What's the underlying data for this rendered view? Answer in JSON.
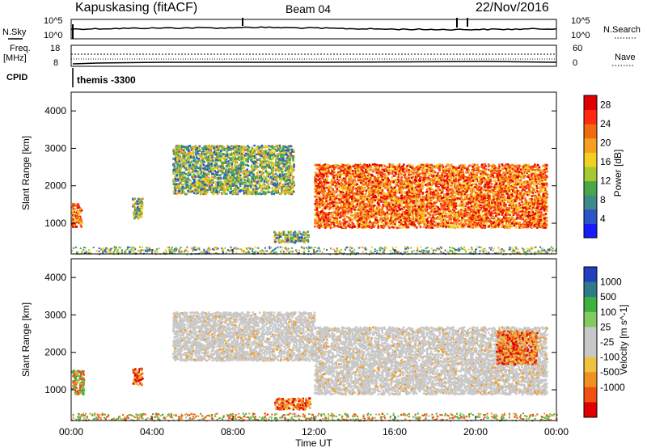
{
  "header": {
    "station": "Kapuskasing (fitACF)",
    "beam": "Beam 04",
    "date": "22/Nov/2016"
  },
  "top_panels": {
    "nsky_label": "N.Sky",
    "nsky_ticks": [
      "10^5",
      "10^0"
    ],
    "nsearch_label": "N.Search",
    "freq_label_line1": "Freq.",
    "freq_label_line2": "[MHz]",
    "freq_ticks": [
      "18",
      "8"
    ],
    "nave_label": "Nave",
    "nave_ticks": [
      "60",
      "0"
    ],
    "cpid_label": "CPID",
    "cpid_value": "themis -3300"
  },
  "chart_data": [
    {
      "type": "heatmap",
      "title": "",
      "xlabel": "Time UT",
      "ylabel": "Slant Range [km]",
      "x_ticks": [
        "00:00",
        "04:00",
        "08:00",
        "12:00",
        "16:00",
        "20:00",
        "00:00"
      ],
      "xlim_hours": [
        0,
        24
      ],
      "ylim_km": [
        180,
        4500
      ],
      "y_ticks": [
        1000,
        2000,
        3000,
        4000
      ],
      "colorbar": {
        "label": "Power [dB]",
        "ticks": [
          4,
          8,
          12,
          16,
          20,
          24,
          28
        ],
        "range": [
          0,
          30
        ],
        "colors": [
          "#1a1aff",
          "#2c55c8",
          "#3c8a8a",
          "#48a848",
          "#a8c832",
          "#f0d020",
          "#f7a020",
          "#f06a10",
          "#ff2a10",
          "#e00000"
        ]
      },
      "features": [
        {
          "t": [
            0.0,
            0.5
          ],
          "r": [
            900,
            1550
          ],
          "level": "high"
        },
        {
          "t": [
            3.0,
            3.5
          ],
          "r": [
            1150,
            1700
          ],
          "level": "medium"
        },
        {
          "t": [
            5.0,
            11.0
          ],
          "r": [
            1800,
            3100
          ],
          "level": "medium"
        },
        {
          "t": [
            10.0,
            11.7
          ],
          "r": [
            500,
            800
          ],
          "level": "medium"
        },
        {
          "t": [
            12.0,
            23.5
          ],
          "r": [
            900,
            2600
          ],
          "level": "high"
        }
      ]
    },
    {
      "type": "heatmap",
      "title": "",
      "xlabel": "Time UT",
      "ylabel": "Slant Range [km]",
      "x_ticks": [
        "00:00",
        "04:00",
        "08:00",
        "12:00",
        "16:00",
        "20:00",
        "00:00"
      ],
      "xlim_hours": [
        0,
        24
      ],
      "ylim_km": [
        180,
        4500
      ],
      "y_ticks": [
        1000,
        2000,
        3000,
        4000
      ],
      "colorbar": {
        "label": "Velocity [m s^-1]",
        "ticks": [
          "1000",
          "500",
          "100",
          "25",
          "-25",
          "-100",
          "-500",
          "-1000"
        ],
        "colors": [
          "#2040c0",
          "#2e7a88",
          "#40b040",
          "#80cc60",
          "#c8c8c8",
          "#c8c8c8",
          "#f0c040",
          "#f09020",
          "#f05010",
          "#e00000"
        ]
      },
      "features": [
        {
          "t": [
            0.0,
            0.6
          ],
          "r": [
            900,
            1550
          ],
          "class": "mixed"
        },
        {
          "t": [
            3.0,
            3.5
          ],
          "r": [
            1150,
            1600
          ],
          "class": "negative"
        },
        {
          "t": [
            5.0,
            12.0
          ],
          "r": [
            1800,
            3100
          ],
          "class": "ground_scatter"
        },
        {
          "t": [
            10.0,
            11.8
          ],
          "r": [
            500,
            800
          ],
          "class": "negative"
        },
        {
          "t": [
            12.0,
            23.5
          ],
          "r": [
            900,
            2700
          ],
          "class": "ground_scatter"
        },
        {
          "t": [
            21.0,
            23.0
          ],
          "r": [
            1700,
            2600
          ],
          "class": "negative"
        }
      ]
    }
  ]
}
